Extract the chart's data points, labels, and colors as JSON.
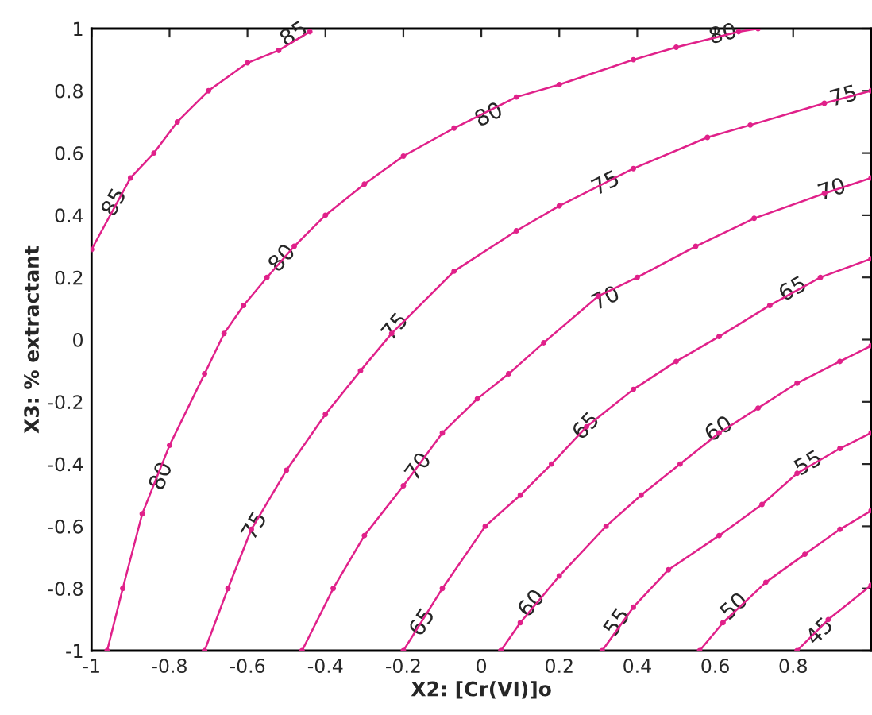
{
  "chart_data": {
    "type": "line",
    "xlabel": "X2: [Cr(VI)]o",
    "ylabel": "X3: % extractant",
    "xlim": [
      -1,
      1
    ],
    "ylim": [
      -1,
      1
    ],
    "xticks": [
      -1,
      -0.8,
      -0.6,
      -0.4,
      -0.2,
      0,
      0.2,
      0.4,
      0.6,
      0.8,
      {
        "value": 1,
        "label": null
      }
    ],
    "yticks": [
      -1,
      -0.8,
      -0.6,
      -0.4,
      -0.2,
      0,
      0.2,
      0.4,
      0.6,
      0.8,
      1
    ],
    "grid": false,
    "marker": "circle",
    "line_style": "solid",
    "series": [
      {
        "color": "#e0218a",
        "x": [
          -1,
          -0.9,
          -0.84,
          -0.78,
          -0.7,
          -0.6,
          -0.52,
          -0.44
        ],
        "values": [
          0.29,
          0.52,
          0.6,
          0.7,
          0.8,
          0.89,
          0.93,
          0.99
        ]
      },
      {
        "color": "#e0218a",
        "x": [
          -0.96,
          -0.92,
          -0.87,
          -0.8,
          -0.71,
          -0.66,
          -0.61,
          -0.55,
          -0.48,
          -0.4,
          -0.3,
          -0.2,
          -0.07,
          0.09,
          0.2,
          0.39,
          0.5,
          0.66,
          0.71
        ],
        "values": [
          -1,
          -0.8,
          -0.56,
          -0.34,
          -0.11,
          0.02,
          0.11,
          0.2,
          0.3,
          0.4,
          0.5,
          0.59,
          0.68,
          0.78,
          0.82,
          0.9,
          0.94,
          0.99,
          1.0
        ]
      },
      {
        "color": "#e0218a",
        "x": [
          -0.71,
          -0.65,
          -0.59,
          -0.5,
          -0.4,
          -0.31,
          -0.23,
          -0.07,
          0.09,
          0.2,
          0.39,
          0.58,
          0.69,
          0.88,
          1.0
        ],
        "values": [
          -1,
          -0.8,
          -0.61,
          -0.42,
          -0.24,
          -0.1,
          0.02,
          0.22,
          0.35,
          0.43,
          0.55,
          0.65,
          0.69,
          0.76,
          0.8
        ]
      },
      {
        "color": "#e0218a",
        "x": [
          -0.46,
          -0.38,
          -0.3,
          -0.2,
          -0.1,
          -0.01,
          0.07,
          0.16,
          0.3,
          0.4,
          0.55,
          0.7,
          0.88,
          1.0
        ],
        "values": [
          -1,
          -0.8,
          -0.63,
          -0.47,
          -0.3,
          -0.19,
          -0.11,
          -0.01,
          0.14,
          0.2,
          0.3,
          0.39,
          0.47,
          0.52
        ]
      },
      {
        "color": "#e0218a",
        "x": [
          -0.2,
          -0.1,
          0.01,
          0.1,
          0.18,
          0.27,
          0.39,
          0.5,
          0.61,
          0.74,
          0.87,
          1.0
        ],
        "values": [
          -1,
          -0.8,
          -0.6,
          -0.5,
          -0.4,
          -0.28,
          -0.16,
          -0.07,
          0.01,
          0.11,
          0.2,
          0.26
        ]
      },
      {
        "color": "#e0218a",
        "x": [
          0.05,
          0.1,
          0.2,
          0.32,
          0.41,
          0.51,
          0.61,
          0.71,
          0.81,
          0.92,
          1.0
        ],
        "values": [
          -1,
          -0.91,
          -0.76,
          -0.6,
          -0.5,
          -0.4,
          -0.3,
          -0.22,
          -0.14,
          -0.07,
          -0.02
        ]
      },
      {
        "color": "#e0218a",
        "x": [
          0.31,
          0.39,
          0.48,
          0.61,
          0.72,
          0.81,
          0.92,
          1.0
        ],
        "values": [
          -1,
          -0.86,
          -0.74,
          -0.63,
          -0.53,
          -0.43,
          -0.35,
          -0.3
        ]
      },
      {
        "color": "#e0218a",
        "x": [
          0.56,
          0.62,
          0.73,
          0.83,
          0.92,
          1.0
        ],
        "values": [
          -1,
          -0.91,
          -0.78,
          -0.69,
          -0.61,
          -0.55
        ]
      },
      {
        "color": "#e0218a",
        "x": [
          0.81,
          0.89,
          1.0
        ],
        "values": [
          -1,
          -0.9,
          -0.79
        ]
      }
    ],
    "annotations": [
      {
        "text": "85",
        "x": -0.94,
        "y": 0.44
      },
      {
        "text": "85",
        "x": -0.48,
        "y": 0.98
      },
      {
        "text": "80",
        "x": -0.82,
        "y": -0.44
      },
      {
        "text": "80",
        "x": -0.51,
        "y": 0.26
      },
      {
        "text": "80",
        "x": 0.02,
        "y": 0.72
      },
      {
        "text": "80",
        "x": 0.62,
        "y": 0.98
      },
      {
        "text": "75",
        "x": -0.58,
        "y": -0.6
      },
      {
        "text": "75",
        "x": -0.22,
        "y": 0.04
      },
      {
        "text": "75",
        "x": 0.32,
        "y": 0.5
      },
      {
        "text": "75",
        "x": 0.93,
        "y": 0.78
      },
      {
        "text": "70",
        "x": -0.16,
        "y": -0.41
      },
      {
        "text": "70",
        "x": 0.32,
        "y": 0.13
      },
      {
        "text": "70",
        "x": 0.9,
        "y": 0.48
      },
      {
        "text": "65",
        "x": -0.15,
        "y": -0.91
      },
      {
        "text": "65",
        "x": 0.27,
        "y": -0.28
      },
      {
        "text": "65",
        "x": 0.8,
        "y": 0.16
      },
      {
        "text": "60",
        "x": 0.13,
        "y": -0.85
      },
      {
        "text": "60",
        "x": 0.61,
        "y": -0.29
      },
      {
        "text": "55",
        "x": 0.35,
        "y": -0.91
      },
      {
        "text": "55",
        "x": 0.84,
        "y": -0.4
      },
      {
        "text": "50",
        "x": 0.65,
        "y": -0.86
      },
      {
        "text": "45",
        "x": 0.87,
        "y": -0.94
      }
    ]
  }
}
